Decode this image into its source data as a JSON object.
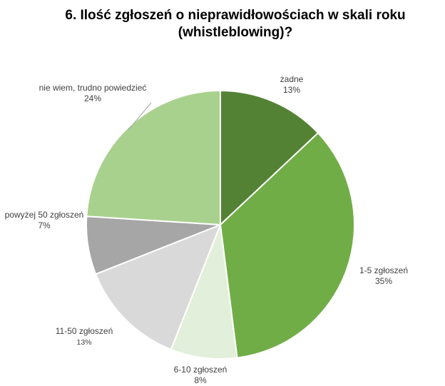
{
  "chart_data": {
    "type": "pie",
    "title_lines": [
      "6. Ilość zgłoszeń o nieprawidłowościach w skali roku",
      "(whistleblowing)?"
    ],
    "slices": [
      {
        "label": "żadne",
        "value": 13,
        "value_label": "13%",
        "color": "#548235"
      },
      {
        "label": "1-5 zgłoszeń",
        "value": 35,
        "value_label": "35%",
        "color": "#70ad47"
      },
      {
        "label": "6-10 zgłoszeń",
        "value": 8,
        "value_label": "8%",
        "color": "#e2efda"
      },
      {
        "label": "11-50 zgłoszeń",
        "value": 13,
        "value_label": "13%",
        "color": "#d9d9d9"
      },
      {
        "label": "powyżej 50 zgłoszeń",
        "value": 7,
        "value_label": "7%",
        "color": "#a6a6a6"
      },
      {
        "label": "nie wiem, trudno powiedzieć",
        "value": 24,
        "value_label": "24%",
        "color": "#a9d18e"
      }
    ],
    "start": "top",
    "direction": "clockwise",
    "slice_border_color": "#ffffff",
    "label_color": "#404040",
    "leader_line_color": "#a6a6a6",
    "legend": "none"
  }
}
